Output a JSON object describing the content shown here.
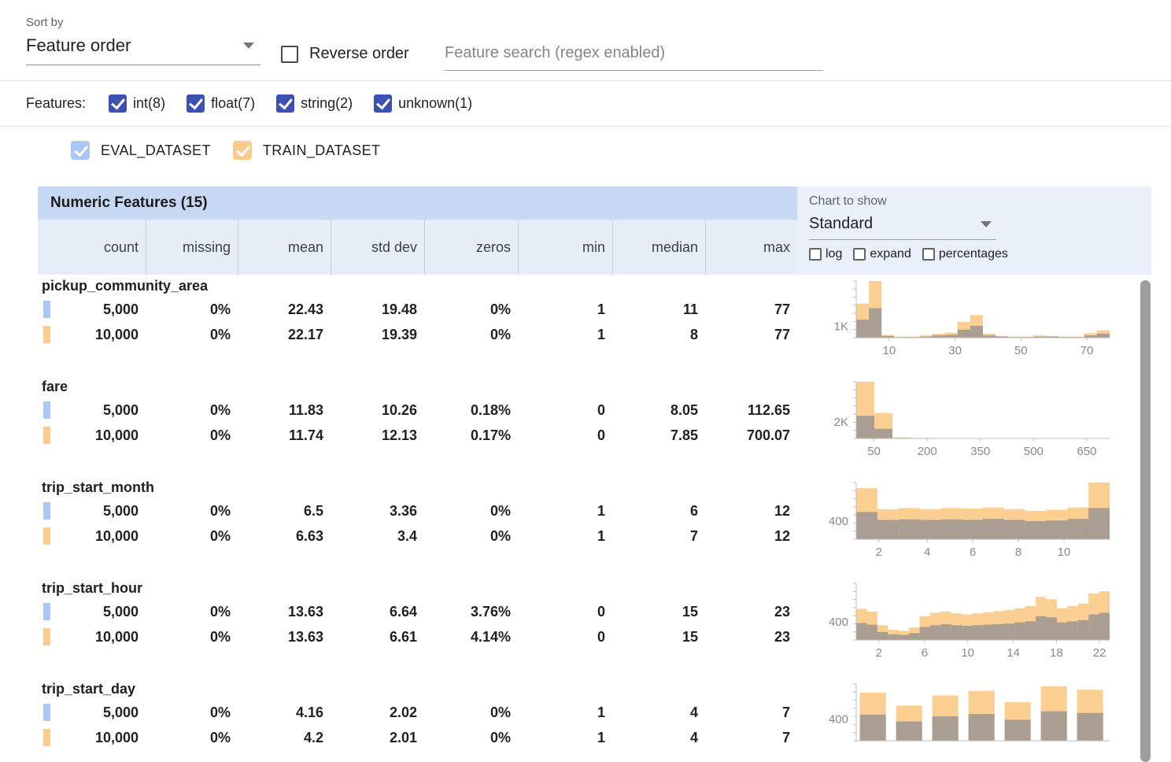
{
  "topbar": {
    "sort_by_label": "Sort by",
    "sort_by_value": "Feature order",
    "reverse_order_label": "Reverse order",
    "search_placeholder": "Feature search (regex enabled)"
  },
  "filters": {
    "label": "Features:",
    "checkbox_color": "#3d51b5",
    "items": [
      {
        "label": "int(8)",
        "checked": true
      },
      {
        "label": "float(7)",
        "checked": true
      },
      {
        "label": "string(2)",
        "checked": true
      },
      {
        "label": "unknown(1)",
        "checked": true
      }
    ]
  },
  "legend": {
    "datasets": [
      {
        "label": "EVAL_DATASET",
        "color": "#a9c6f6",
        "checked": true
      },
      {
        "label": "TRAIN_DATASET",
        "color": "#fbca8c",
        "checked": true
      }
    ]
  },
  "chart_colors": {
    "train_bar": "rgba(250,194,118,0.8)",
    "eval_bar": "rgba(104,116,146,0.55)",
    "axis": "#bdbdbd",
    "tick_text": "#85898e"
  },
  "table": {
    "title": "Numeric Features (15)",
    "columns": [
      "count",
      "missing",
      "mean",
      "std dev",
      "zeros",
      "min",
      "median",
      "max"
    ],
    "chart_controls": {
      "label": "Chart to show",
      "selected": "Standard",
      "options": [
        {
          "label": "log",
          "checked": false
        },
        {
          "label": "expand",
          "checked": false
        },
        {
          "label": "percentages",
          "checked": false
        }
      ]
    },
    "features": [
      {
        "name": "pickup_community_area",
        "rows": [
          {
            "dataset": "EVAL_DATASET",
            "values": [
              "5,000",
              "0%",
              "22.43",
              "19.48",
              "0%",
              "1",
              "11",
              "77"
            ]
          },
          {
            "dataset": "TRAIN_DATASET",
            "values": [
              "10,000",
              "0%",
              "22.17",
              "19.39",
              "0%",
              "1",
              "8",
              "77"
            ]
          }
        ],
        "chart": {
          "type": "histogram",
          "ylabel": "1K",
          "ylabel_frac": 0.2,
          "xticks": [
            {
              "label": "10",
              "frac": 0.13
            },
            {
              "label": "30",
              "frac": 0.39
            },
            {
              "label": "50",
              "frac": 0.65
            },
            {
              "label": "70",
              "frac": 0.91
            }
          ],
          "gaps": false,
          "train": [
            0.6,
            1.0,
            0.05,
            0.02,
            0.02,
            0.04,
            0.07,
            0.09,
            0.28,
            0.4,
            0.07,
            0.03,
            0.02,
            0.02,
            0.04,
            0.03,
            0.02,
            0.02,
            0.08,
            0.13
          ],
          "eval": [
            0.32,
            0.52,
            0.03,
            0.01,
            0.01,
            0.02,
            0.04,
            0.05,
            0.14,
            0.21,
            0.04,
            0.02,
            0.01,
            0.01,
            0.02,
            0.02,
            0.01,
            0.01,
            0.04,
            0.07
          ]
        }
      },
      {
        "name": "fare",
        "rows": [
          {
            "dataset": "EVAL_DATASET",
            "values": [
              "5,000",
              "0%",
              "11.83",
              "10.26",
              "0.18%",
              "0",
              "8.05",
              "112.65"
            ]
          },
          {
            "dataset": "TRAIN_DATASET",
            "values": [
              "10,000",
              "0%",
              "11.74",
              "12.13",
              "0.17%",
              "0",
              "7.85",
              "700.07"
            ]
          }
        ],
        "chart": {
          "type": "histogram",
          "ylabel": "2K",
          "ylabel_frac": 0.29,
          "xticks": [
            {
              "label": "50",
              "frac": 0.07
            },
            {
              "label": "200",
              "frac": 0.28
            },
            {
              "label": "350",
              "frac": 0.49
            },
            {
              "label": "500",
              "frac": 0.7
            },
            {
              "label": "650",
              "frac": 0.91
            }
          ],
          "gaps": false,
          "train": [
            1.0,
            0.45,
            0.02,
            0.01,
            0.006,
            0.004,
            0.003,
            0.002,
            0.002,
            0.001,
            0.001,
            0.001,
            0.001,
            0.002
          ],
          "eval": [
            0.4,
            0.17,
            0.01,
            0.005,
            0.003,
            0.002,
            0.001,
            0.001,
            0.001,
            0.001,
            0,
            0,
            0,
            0
          ]
        }
      },
      {
        "name": "trip_start_month",
        "rows": [
          {
            "dataset": "EVAL_DATASET",
            "values": [
              "5,000",
              "0%",
              "6.5",
              "3.36",
              "0%",
              "1",
              "6",
              "12"
            ]
          },
          {
            "dataset": "TRAIN_DATASET",
            "values": [
              "10,000",
              "0%",
              "6.63",
              "3.4",
              "0%",
              "1",
              "7",
              "12"
            ]
          }
        ],
        "chart": {
          "type": "histogram",
          "ylabel": "400",
          "ylabel_frac": 0.32,
          "xticks": [
            {
              "label": "2",
              "frac": 0.09
            },
            {
              "label": "4",
              "frac": 0.28
            },
            {
              "label": "6",
              "frac": 0.46
            },
            {
              "label": "8",
              "frac": 0.64
            },
            {
              "label": "10",
              "frac": 0.82
            }
          ],
          "gaps": false,
          "train": [
            0.9,
            0.53,
            0.55,
            0.53,
            0.55,
            0.54,
            0.56,
            0.53,
            0.5,
            0.52,
            0.56,
            1.0
          ],
          "eval": [
            0.48,
            0.34,
            0.35,
            0.34,
            0.35,
            0.34,
            0.36,
            0.34,
            0.32,
            0.33,
            0.36,
            0.55
          ]
        }
      },
      {
        "name": "trip_start_hour",
        "rows": [
          {
            "dataset": "EVAL_DATASET",
            "values": [
              "5,000",
              "0%",
              "13.63",
              "6.64",
              "3.76%",
              "0",
              "15",
              "23"
            ]
          },
          {
            "dataset": "TRAIN_DATASET",
            "values": [
              "10,000",
              "0%",
              "13.63",
              "6.61",
              "4.14%",
              "0",
              "15",
              "23"
            ]
          }
        ],
        "chart": {
          "type": "histogram",
          "ylabel": "400",
          "ylabel_frac": 0.32,
          "xticks": [
            {
              "label": "2",
              "frac": 0.09
            },
            {
              "label": "6",
              "frac": 0.27
            },
            {
              "label": "10",
              "frac": 0.44
            },
            {
              "label": "14",
              "frac": 0.62
            },
            {
              "label": "18",
              "frac": 0.79
            },
            {
              "label": "22",
              "frac": 0.96
            }
          ],
          "gaps": false,
          "train": [
            0.55,
            0.5,
            0.26,
            0.18,
            0.16,
            0.22,
            0.42,
            0.48,
            0.5,
            0.47,
            0.45,
            0.47,
            0.49,
            0.51,
            0.53,
            0.56,
            0.6,
            0.76,
            0.72,
            0.56,
            0.6,
            0.64,
            0.82,
            0.86
          ],
          "eval": [
            0.3,
            0.27,
            0.14,
            0.1,
            0.09,
            0.12,
            0.23,
            0.26,
            0.28,
            0.26,
            0.25,
            0.26,
            0.27,
            0.28,
            0.29,
            0.31,
            0.33,
            0.42,
            0.4,
            0.31,
            0.33,
            0.35,
            0.45,
            0.48
          ]
        }
      },
      {
        "name": "trip_start_day",
        "rows": [
          {
            "dataset": "EVAL_DATASET",
            "values": [
              "5,000",
              "0%",
              "4.16",
              "2.02",
              "0%",
              "1",
              "4",
              "7"
            ]
          },
          {
            "dataset": "TRAIN_DATASET",
            "values": [
              "10,000",
              "0%",
              "4.2",
              "2.01",
              "0%",
              "1",
              "4",
              "7"
            ]
          }
        ],
        "chart": {
          "type": "histogram",
          "ylabel": "400",
          "ylabel_frac": 0.38,
          "xticks": [],
          "gaps": true,
          "train": [
            0.85,
            0.62,
            0.8,
            0.88,
            0.68,
            0.96,
            0.9
          ],
          "eval": [
            0.46,
            0.34,
            0.43,
            0.47,
            0.37,
            0.52,
            0.49
          ]
        }
      }
    ]
  }
}
